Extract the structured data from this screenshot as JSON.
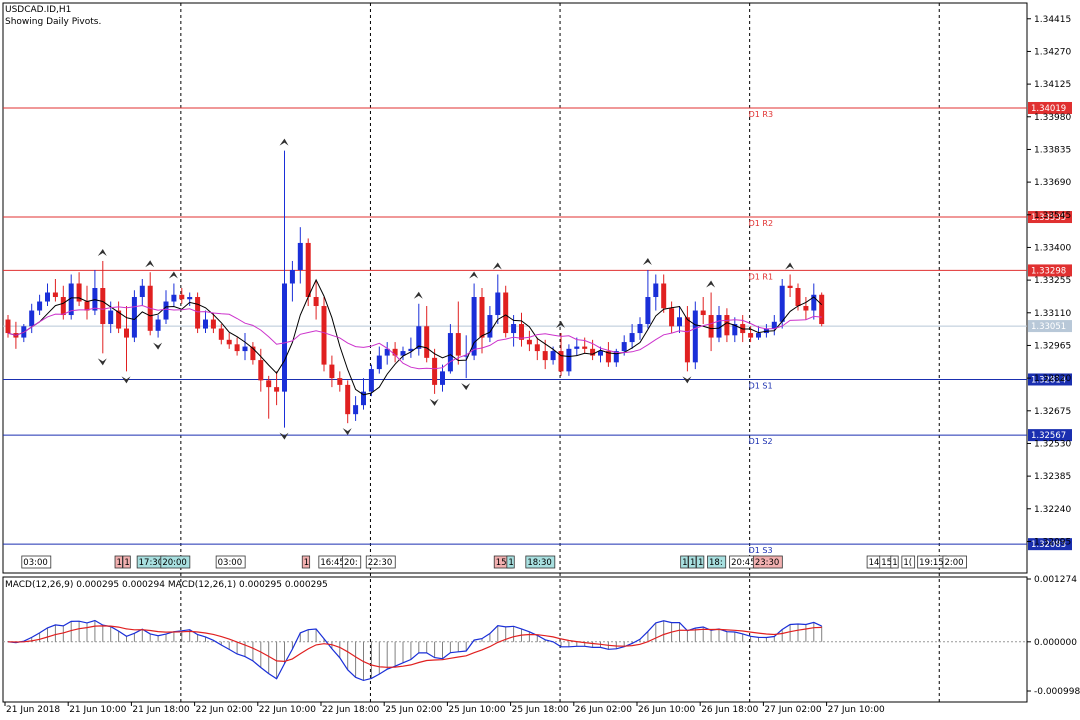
{
  "header": {
    "symbol": "USDCAD.ID,H1",
    "subtitle": "Showing Daily Pivots."
  },
  "chart_data": {
    "type": "candlestick",
    "price_axis": {
      "min": 1.31955,
      "max": 1.34485,
      "ticks": [
        1.34415,
        1.3427,
        1.34125,
        1.3398,
        1.33835,
        1.3369,
        1.33545,
        1.334,
        1.33255,
        1.3311,
        1.32965,
        1.3282,
        1.32675,
        1.3253,
        1.32385,
        1.3224,
        1.32095
      ]
    },
    "time_axis": {
      "labels": [
        "21 Jun 2018",
        "21 Jun 10:00",
        "21 Jun 18:00",
        "22 Jun 02:00",
        "22 Jun 10:00",
        "22 Jun 18:00",
        "25 Jun 02:00",
        "25 Jun 10:00",
        "25 Jun 18:00",
        "26 Jun 02:00",
        "26 Jun 10:00",
        "26 Jun 18:00",
        "27 Jun 02:00",
        "27 Jun 10:00"
      ],
      "label_bars": [
        0,
        8,
        16,
        24,
        32,
        40,
        48,
        56,
        64,
        72,
        80,
        88,
        96,
        104
      ],
      "day_separator_bars": [
        22,
        46,
        70,
        94,
        118
      ]
    },
    "pivots": [
      {
        "name": "D1 R3",
        "value": 1.34019,
        "color": "#e03030"
      },
      {
        "name": "D1 R2",
        "value": 1.33535,
        "color": "#e03030"
      },
      {
        "name": "D1 R1",
        "value": 1.33298,
        "color": "#e03030"
      },
      {
        "name": "D1 S1",
        "value": 1.32814,
        "color": "#1a2fb0"
      },
      {
        "name": "D1 S2",
        "value": 1.32567,
        "color": "#1a2fb0"
      },
      {
        "name": "D1 S3",
        "value": 1.32083,
        "color": "#1a2fb0"
      }
    ],
    "pivot_label_bar": 94,
    "current_price": {
      "value": 1.33051,
      "color": "#b8c8d8"
    },
    "series": [
      {
        "name": "candles",
        "up_color": "#1a2fd8",
        "down_color": "#e02020",
        "ohlc": [
          [
            1.3308,
            1.331,
            1.33,
            1.3302
          ],
          [
            1.3302,
            1.3307,
            1.3295,
            1.33
          ],
          [
            1.33,
            1.3306,
            1.3298,
            1.3305
          ],
          [
            1.3305,
            1.3315,
            1.3302,
            1.3312
          ],
          [
            1.3312,
            1.3319,
            1.331,
            1.3316
          ],
          [
            1.3316,
            1.3324,
            1.3314,
            1.332
          ],
          [
            1.332,
            1.3326,
            1.3316,
            1.3318
          ],
          [
            1.3318,
            1.3323,
            1.3308,
            1.331
          ],
          [
            1.331,
            1.3328,
            1.3308,
            1.3324
          ],
          [
            1.3324,
            1.3329,
            1.3314,
            1.3316
          ],
          [
            1.3316,
            1.3323,
            1.3308,
            1.3312
          ],
          [
            1.3312,
            1.333,
            1.331,
            1.3322
          ],
          [
            1.3322,
            1.3334,
            1.3293,
            1.3306
          ],
          [
            1.3306,
            1.3316,
            1.3302,
            1.3312
          ],
          [
            1.3312,
            1.3316,
            1.3302,
            1.3304
          ],
          [
            1.3304,
            1.3314,
            1.3285,
            1.33
          ],
          [
            1.33,
            1.3321,
            1.3298,
            1.3318
          ],
          [
            1.3318,
            1.3326,
            1.3314,
            1.3323
          ],
          [
            1.3323,
            1.3329,
            1.3301,
            1.3303
          ],
          [
            1.3303,
            1.331,
            1.33,
            1.3308
          ],
          [
            1.3308,
            1.3321,
            1.3306,
            1.3316
          ],
          [
            1.3316,
            1.3324,
            1.3314,
            1.3319
          ],
          [
            1.3319,
            1.3322,
            1.3315,
            1.3317
          ],
          [
            1.3317,
            1.332,
            1.3314,
            1.3318
          ],
          [
            1.3318,
            1.332,
            1.3302,
            1.3304
          ],
          [
            1.3304,
            1.3312,
            1.3302,
            1.3308
          ],
          [
            1.3308,
            1.3311,
            1.3302,
            1.3304
          ],
          [
            1.3304,
            1.3306,
            1.3297,
            1.3299
          ],
          [
            1.3299,
            1.3302,
            1.3295,
            1.3297
          ],
          [
            1.3297,
            1.33,
            1.3292,
            1.3294
          ],
          [
            1.3294,
            1.3302,
            1.329,
            1.3296
          ],
          [
            1.3296,
            1.3298,
            1.3288,
            1.329
          ],
          [
            1.329,
            1.3295,
            1.3276,
            1.3281
          ],
          [
            1.3281,
            1.3283,
            1.3264,
            1.3278
          ],
          [
            1.3278,
            1.3285,
            1.327,
            1.3276
          ],
          [
            1.3276,
            1.3383,
            1.326,
            1.3324
          ],
          [
            1.3324,
            1.3334,
            1.3316,
            1.333
          ],
          [
            1.333,
            1.3349,
            1.3324,
            1.3342
          ],
          [
            1.3342,
            1.3344,
            1.3314,
            1.3318
          ],
          [
            1.3318,
            1.3325,
            1.3308,
            1.3314
          ],
          [
            1.3314,
            1.3318,
            1.3285,
            1.3288
          ],
          [
            1.3288,
            1.3292,
            1.3278,
            1.3282
          ],
          [
            1.3282,
            1.3285,
            1.3276,
            1.3279
          ],
          [
            1.3279,
            1.3281,
            1.3262,
            1.3266
          ],
          [
            1.3266,
            1.3274,
            1.3263,
            1.327
          ],
          [
            1.327,
            1.3282,
            1.3268,
            1.3276
          ],
          [
            1.3276,
            1.3288,
            1.3274,
            1.3286
          ],
          [
            1.3286,
            1.3296,
            1.3284,
            1.3292
          ],
          [
            1.3292,
            1.3298,
            1.3288,
            1.3295
          ],
          [
            1.3295,
            1.3298,
            1.3289,
            1.3292
          ],
          [
            1.3292,
            1.3296,
            1.329,
            1.3294
          ],
          [
            1.3294,
            1.33,
            1.3291,
            1.3295
          ],
          [
            1.3295,
            1.3315,
            1.3292,
            1.3305
          ],
          [
            1.3305,
            1.3314,
            1.3289,
            1.3291
          ],
          [
            1.3291,
            1.3295,
            1.3275,
            1.3279
          ],
          [
            1.3279,
            1.3288,
            1.3276,
            1.3285
          ],
          [
            1.3285,
            1.3306,
            1.3284,
            1.3302
          ],
          [
            1.3302,
            1.3316,
            1.3288,
            1.3292
          ],
          [
            1.3292,
            1.3301,
            1.3282,
            1.3292
          ],
          [
            1.3292,
            1.3324,
            1.329,
            1.3318
          ],
          [
            1.3318,
            1.3322,
            1.3293,
            1.33
          ],
          [
            1.33,
            1.3314,
            1.3298,
            1.331
          ],
          [
            1.331,
            1.3328,
            1.3306,
            1.332
          ],
          [
            1.332,
            1.3323,
            1.33,
            1.3302
          ],
          [
            1.3302,
            1.331,
            1.3296,
            1.3306
          ],
          [
            1.3306,
            1.3311,
            1.3296,
            1.3299
          ],
          [
            1.3299,
            1.3303,
            1.3294,
            1.3297
          ],
          [
            1.3297,
            1.33,
            1.329,
            1.3294
          ],
          [
            1.3294,
            1.3299,
            1.3286,
            1.329
          ],
          [
            1.329,
            1.3296,
            1.3288,
            1.3294
          ],
          [
            1.3294,
            1.3302,
            1.3283,
            1.3285
          ],
          [
            1.3285,
            1.3297,
            1.3283,
            1.3295
          ],
          [
            1.3295,
            1.33,
            1.3292,
            1.3296
          ],
          [
            1.3296,
            1.33,
            1.3293,
            1.3295
          ],
          [
            1.3295,
            1.3299,
            1.329,
            1.3292
          ],
          [
            1.3292,
            1.3296,
            1.3289,
            1.3294
          ],
          [
            1.3294,
            1.3298,
            1.3287,
            1.3289
          ],
          [
            1.3289,
            1.3295,
            1.3287,
            1.3294
          ],
          [
            1.3294,
            1.3301,
            1.3292,
            1.3298
          ],
          [
            1.3298,
            1.3306,
            1.3295,
            1.3302
          ],
          [
            1.3302,
            1.3309,
            1.3299,
            1.3306
          ],
          [
            1.3306,
            1.333,
            1.3304,
            1.3318
          ],
          [
            1.3318,
            1.3328,
            1.3312,
            1.3324
          ],
          [
            1.3324,
            1.3328,
            1.3311,
            1.3313
          ],
          [
            1.3313,
            1.3316,
            1.3302,
            1.3305
          ],
          [
            1.3305,
            1.3314,
            1.3302,
            1.3309
          ],
          [
            1.3309,
            1.3314,
            1.3285,
            1.3289
          ],
          [
            1.3289,
            1.3316,
            1.3286,
            1.3312
          ],
          [
            1.3312,
            1.3318,
            1.3306,
            1.331
          ],
          [
            1.331,
            1.332,
            1.3294,
            1.33
          ],
          [
            1.33,
            1.3314,
            1.3298,
            1.331
          ],
          [
            1.331,
            1.3313,
            1.3298,
            1.3301
          ],
          [
            1.3301,
            1.3309,
            1.3298,
            1.3306
          ],
          [
            1.3306,
            1.331,
            1.3298,
            1.3302
          ],
          [
            1.3302,
            1.3305,
            1.3298,
            1.33
          ],
          [
            1.33,
            1.3305,
            1.3299,
            1.3302
          ],
          [
            1.3302,
            1.3306,
            1.33,
            1.3304
          ],
          [
            1.3304,
            1.331,
            1.3301,
            1.3307
          ],
          [
            1.3307,
            1.3326,
            1.3304,
            1.3323
          ],
          [
            1.3323,
            1.3328,
            1.3318,
            1.3322
          ],
          [
            1.3322,
            1.3324,
            1.3312,
            1.3314
          ],
          [
            1.3314,
            1.3318,
            1.3308,
            1.3312
          ],
          [
            1.3312,
            1.3324,
            1.3308,
            1.3319
          ],
          [
            1.3319,
            1.332,
            1.3305,
            1.3306
          ]
        ]
      },
      {
        "name": "ma_fast",
        "color": "#000000"
      },
      {
        "name": "ma_slow",
        "color": "#cc33cc"
      }
    ],
    "session_labels": [
      {
        "text": "03:00",
        "bar": 2,
        "bg": "#ffffff"
      },
      {
        "text": "1",
        "bar": 13.8,
        "bg": "#f2b0b0"
      },
      {
        "text": "1",
        "bar": 14.8,
        "bg": "#f2b0b0"
      },
      {
        "text": "17:30",
        "bar": 16.6,
        "bg": "#a8e0e0"
      },
      {
        "text": "20:00",
        "bar": 19.6,
        "bg": "#a8e0e0"
      },
      {
        "text": "03:00",
        "bar": 26.6,
        "bg": "#ffffff"
      },
      {
        "text": "1",
        "bar": 37.5,
        "bg": "#f2b0b0"
      },
      {
        "text": "16:45",
        "bar": 39.6,
        "bg": "#ffffff"
      },
      {
        "text": "20:",
        "bar": 42.6,
        "bg": "#ffffff"
      },
      {
        "text": "22:30",
        "bar": 45.6,
        "bg": "#ffffff"
      },
      {
        "text": "15:",
        "bar": 61.8,
        "bg": "#f2b0b0"
      },
      {
        "text": "1",
        "bar": 63.4,
        "bg": "#a8e0e0"
      },
      {
        "text": "18:30",
        "bar": 65.8,
        "bg": "#a8e0e0"
      },
      {
        "text": "1",
        "bar": 85.4,
        "bg": "#a8e0e0"
      },
      {
        "text": "1",
        "bar": 86.4,
        "bg": "#a8e0e0"
      },
      {
        "text": "1",
        "bar": 87.4,
        "bg": "#a8e0e0"
      },
      {
        "text": "18:",
        "bar": 88.8,
        "bg": "#a8e0e0"
      },
      {
        "text": "20:45",
        "bar": 91.6,
        "bg": "#ffffff"
      },
      {
        "text": "23:30",
        "bar": 94.6,
        "bg": "#f2b0b0"
      },
      {
        "text": "14",
        "bar": 109,
        "bg": "#ffffff"
      },
      {
        "text": "15",
        "bar": 110.6,
        "bg": "#ffffff"
      },
      {
        "text": "1",
        "bar": 112,
        "bg": "#ffffff"
      },
      {
        "text": "1(",
        "bar": 113.4,
        "bg": "#ffffff"
      },
      {
        "text": "19:15",
        "bar": 115.4,
        "bg": "#ffffff"
      },
      {
        "text": "2:00",
        "bar": 118.6,
        "bg": "#ffffff"
      }
    ],
    "macd": {
      "title": "MACD(12,26,9) 0.000295 0.000294 MACD(12,26,1) 0.000295 0.000295",
      "min": -0.000998,
      "max": 0.001274,
      "ticks": [
        0.001274,
        0.0,
        -0.000998
      ],
      "tick_labels": [
        "0.001274",
        "0.000000",
        "-0.000998"
      ],
      "macd_color": "#1a2fd8",
      "signal_color": "#e02020",
      "histogram_color": "#808080"
    }
  }
}
